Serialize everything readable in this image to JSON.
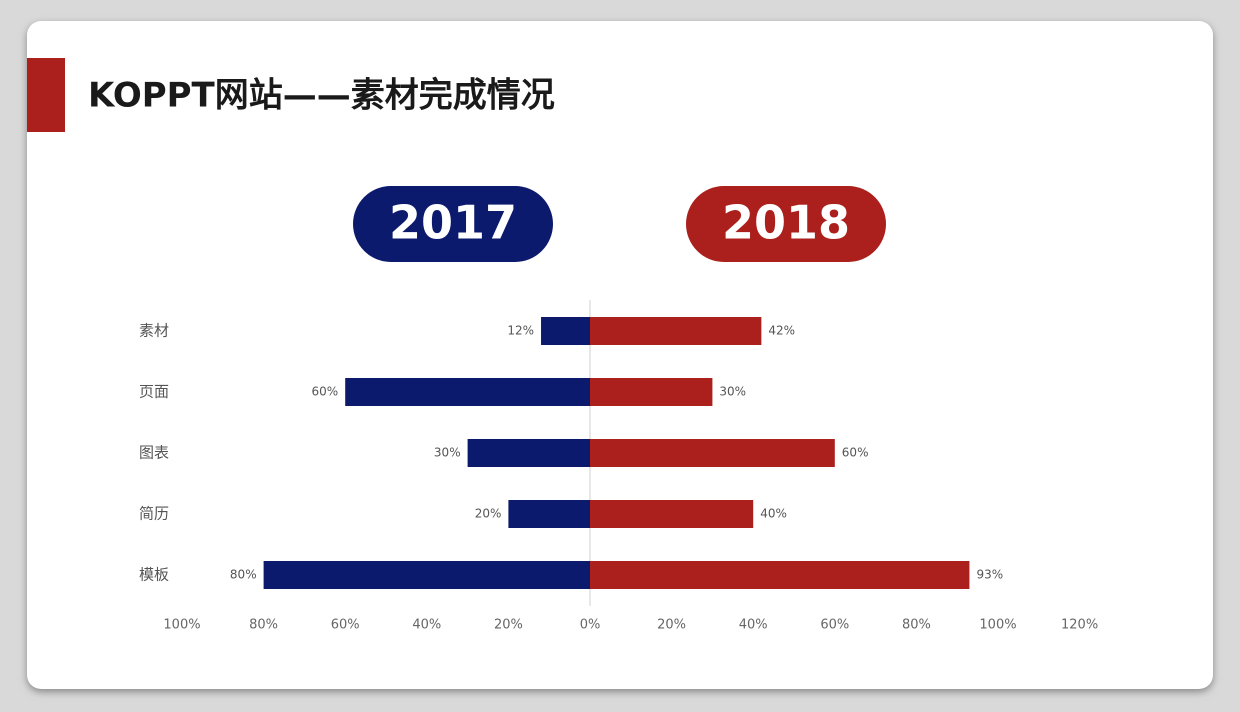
{
  "header": {
    "title": "KOPPT网站——素材完成情况"
  },
  "chart_data": {
    "type": "bar",
    "orientation": "horizontal",
    "categories": [
      "素材",
      "页面",
      "图表",
      "简历",
      "模板"
    ],
    "series": [
      {
        "name": "2017",
        "color": "#0c1a6e",
        "values": [
          -12,
          -60,
          -30,
          -20,
          -80
        ],
        "value_labels": [
          "12%",
          "60%",
          "30%",
          "20%",
          "80%"
        ]
      },
      {
        "name": "2018",
        "color": "#ab1f1c",
        "values": [
          42,
          30,
          60,
          40,
          93
        ],
        "value_labels": [
          "42%",
          "30%",
          "60%",
          "40%",
          "93%"
        ]
      }
    ],
    "xlim": [
      -100,
      120
    ],
    "xticks": [
      {
        "value": -100,
        "label": "100%"
      },
      {
        "value": -80,
        "label": "80%"
      },
      {
        "value": -60,
        "label": "60%"
      },
      {
        "value": -40,
        "label": "40%"
      },
      {
        "value": -20,
        "label": "20%"
      },
      {
        "value": 0,
        "label": "0%"
      },
      {
        "value": 20,
        "label": "20%"
      },
      {
        "value": 40,
        "label": "40%"
      },
      {
        "value": 60,
        "label": "60%"
      },
      {
        "value": 80,
        "label": "80%"
      },
      {
        "value": 100,
        "label": "100%"
      },
      {
        "value": 120,
        "label": "120%"
      }
    ]
  }
}
